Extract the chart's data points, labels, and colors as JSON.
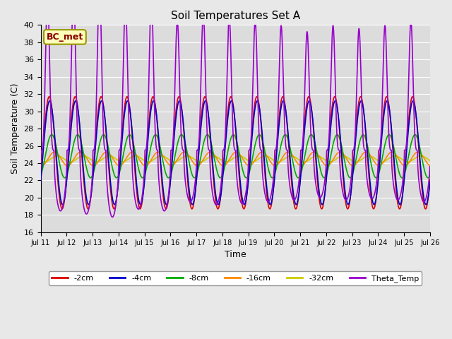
{
  "title": "Soil Temperatures Set A",
  "xlabel": "Time",
  "ylabel": "Soil Temperature (C)",
  "ylim": [
    16,
    40
  ],
  "fig_bg": "#e8e8e8",
  "plot_bg": "#dcdcdc",
  "grid_color": "#ffffff",
  "legend_label": "BC_met",
  "series_order": [
    "-2cm",
    "-4cm",
    "-8cm",
    "-16cm",
    "-32cm",
    "Theta_Temp"
  ],
  "series": {
    "-2cm": {
      "color": "#dd0000",
      "lw": 1.2
    },
    "-4cm": {
      "color": "#0000cc",
      "lw": 1.2
    },
    "-8cm": {
      "color": "#00aa00",
      "lw": 1.2
    },
    "-16cm": {
      "color": "#ff8800",
      "lw": 1.2
    },
    "-32cm": {
      "color": "#cccc00",
      "lw": 1.2
    },
    "Theta_Temp": {
      "color": "#9900cc",
      "lw": 1.2
    }
  },
  "xticklabels": [
    "Jul 11",
    "Jul 12",
    "Jul 13",
    "Jul 14",
    "Jul 15",
    "Jul 16",
    "Jul 17",
    "Jul 18",
    "Jul 19",
    "Jul 20",
    "Jul 21",
    "Jul 22",
    "Jul 23",
    "Jul 24",
    "Jul 25",
    "Jul 26"
  ],
  "n_days": 15,
  "pts_per_day": 120,
  "params": {
    "-2cm": {
      "amp": 6.5,
      "base": 25.2,
      "phase": 0.5,
      "noise": 0.0
    },
    "-4cm": {
      "amp": 6.0,
      "base": 25.2,
      "phase": 0.6,
      "noise": 0.0
    },
    "-8cm": {
      "amp": 2.5,
      "base": 24.8,
      "phase": 1.1,
      "noise": 0.0
    },
    "-16cm": {
      "amp": 0.8,
      "base": 24.5,
      "phase": 1.8,
      "noise": 0.0
    },
    "-32cm": {
      "amp": 0.35,
      "base": 24.5,
      "phase": 2.5,
      "noise": 0.0
    },
    "Theta_Temp": {
      "amp": 8.0,
      "base": 25.5,
      "phase": 0.1,
      "spike_power": 4.0
    }
  }
}
